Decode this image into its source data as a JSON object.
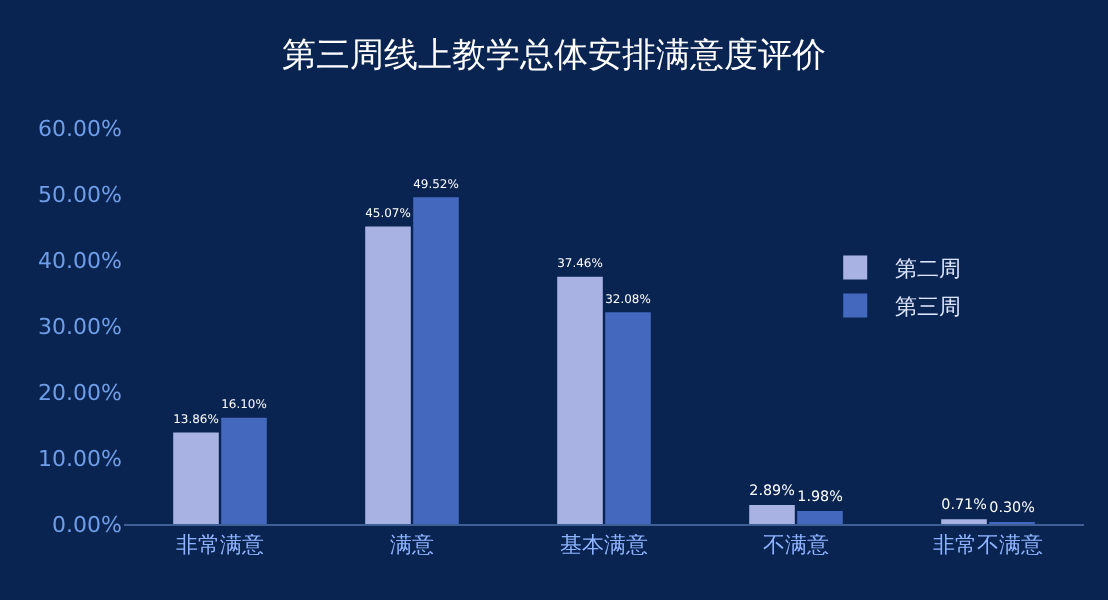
{
  "chart_data": {
    "type": "bar",
    "title": "第三周线上教学总体安排满意度评价",
    "categories": [
      "非常满意",
      "满意",
      "基本满意",
      "不满意",
      "非常不满意"
    ],
    "series": [
      {
        "name": "第二周",
        "color": "#a9b3e3",
        "values": [
          13.86,
          45.07,
          37.46,
          2.89,
          0.71
        ],
        "value_labels": [
          "13.86%",
          "45.07%",
          "37.46%",
          "2.89%",
          "0.71%"
        ]
      },
      {
        "name": "第三周",
        "color": "#4568bf",
        "values": [
          16.1,
          49.52,
          32.08,
          1.98,
          0.3
        ],
        "value_labels": [
          "16.10%",
          "49.52%",
          "32.08%",
          "1.98%",
          "0.30%"
        ]
      }
    ],
    "ylim": [
      0,
      60
    ],
    "yticks": [
      {
        "value": 0,
        "label": "0.00%"
      },
      {
        "value": 10,
        "label": "10.00%"
      },
      {
        "value": 20,
        "label": "20.00%"
      },
      {
        "value": 30,
        "label": "30.00%"
      },
      {
        "value": 40,
        "label": "40.00%"
      },
      {
        "value": 50,
        "label": "50.00%"
      },
      {
        "value": 60,
        "label": "60.00%"
      }
    ],
    "grid": false,
    "legend": "right"
  }
}
